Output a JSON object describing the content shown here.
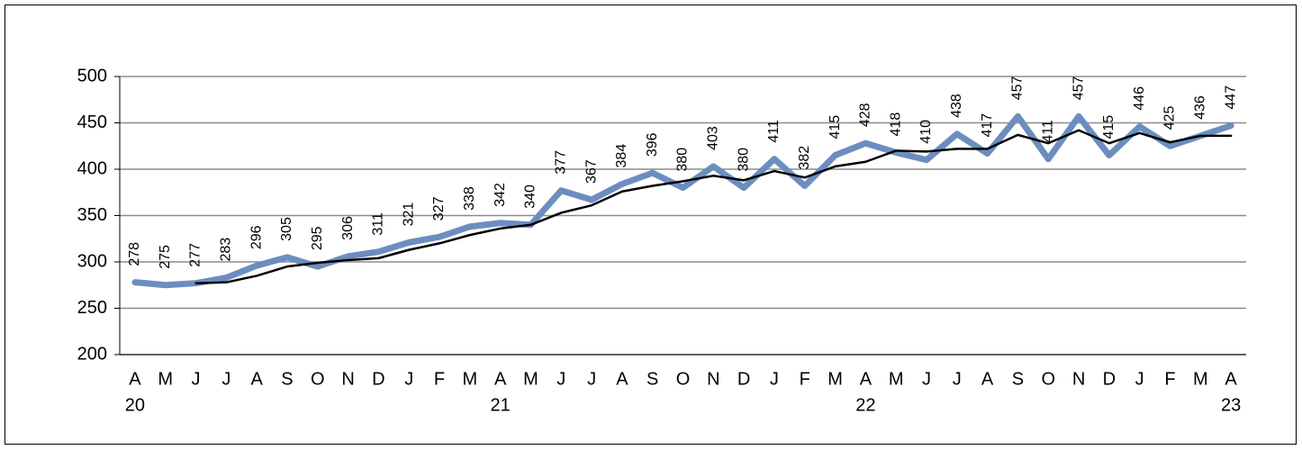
{
  "chart_data": {
    "type": "line",
    "categories": [
      "A",
      "M",
      "J",
      "J",
      "A",
      "S",
      "O",
      "N",
      "D",
      "J",
      "F",
      "M",
      "A",
      "M",
      "J",
      "J",
      "A",
      "S",
      "O",
      "N",
      "D",
      "J",
      "F",
      "M",
      "A",
      "M",
      "J",
      "J",
      "A",
      "S",
      "O",
      "N",
      "D",
      "J",
      "F",
      "M",
      "A"
    ],
    "category_years": [
      "20",
      null,
      null,
      null,
      null,
      null,
      null,
      null,
      null,
      null,
      null,
      null,
      "21",
      null,
      null,
      null,
      null,
      null,
      null,
      null,
      null,
      null,
      null,
      null,
      "22",
      null,
      null,
      null,
      null,
      null,
      null,
      null,
      null,
      null,
      null,
      null,
      "23"
    ],
    "series": [
      {
        "color": "#6c8ebf",
        "values": [
          278,
          275,
          277,
          283,
          296,
          305,
          295,
          306,
          311,
          321,
          327,
          338,
          342,
          340,
          377,
          367,
          384,
          396,
          380,
          403,
          380,
          411,
          382,
          415,
          428,
          418,
          410,
          438,
          417,
          457,
          411,
          457,
          415,
          446,
          425,
          436,
          447
        ],
        "data_labels": true
      },
      {
        "color": "#000000",
        "values": [
          null,
          null,
          277,
          278,
          285,
          295,
          299,
          302,
          304,
          313,
          320,
          329,
          336,
          340,
          353,
          361,
          376,
          382,
          387,
          393,
          388,
          398,
          391,
          403,
          408,
          420,
          419,
          422,
          422,
          437,
          428,
          442,
          428,
          439,
          429,
          436,
          436
        ],
        "data_labels": false
      }
    ],
    "ylim": [
      200,
      500
    ],
    "yticks": [
      200,
      250,
      300,
      350,
      400,
      450,
      500
    ],
    "grid": true
  }
}
